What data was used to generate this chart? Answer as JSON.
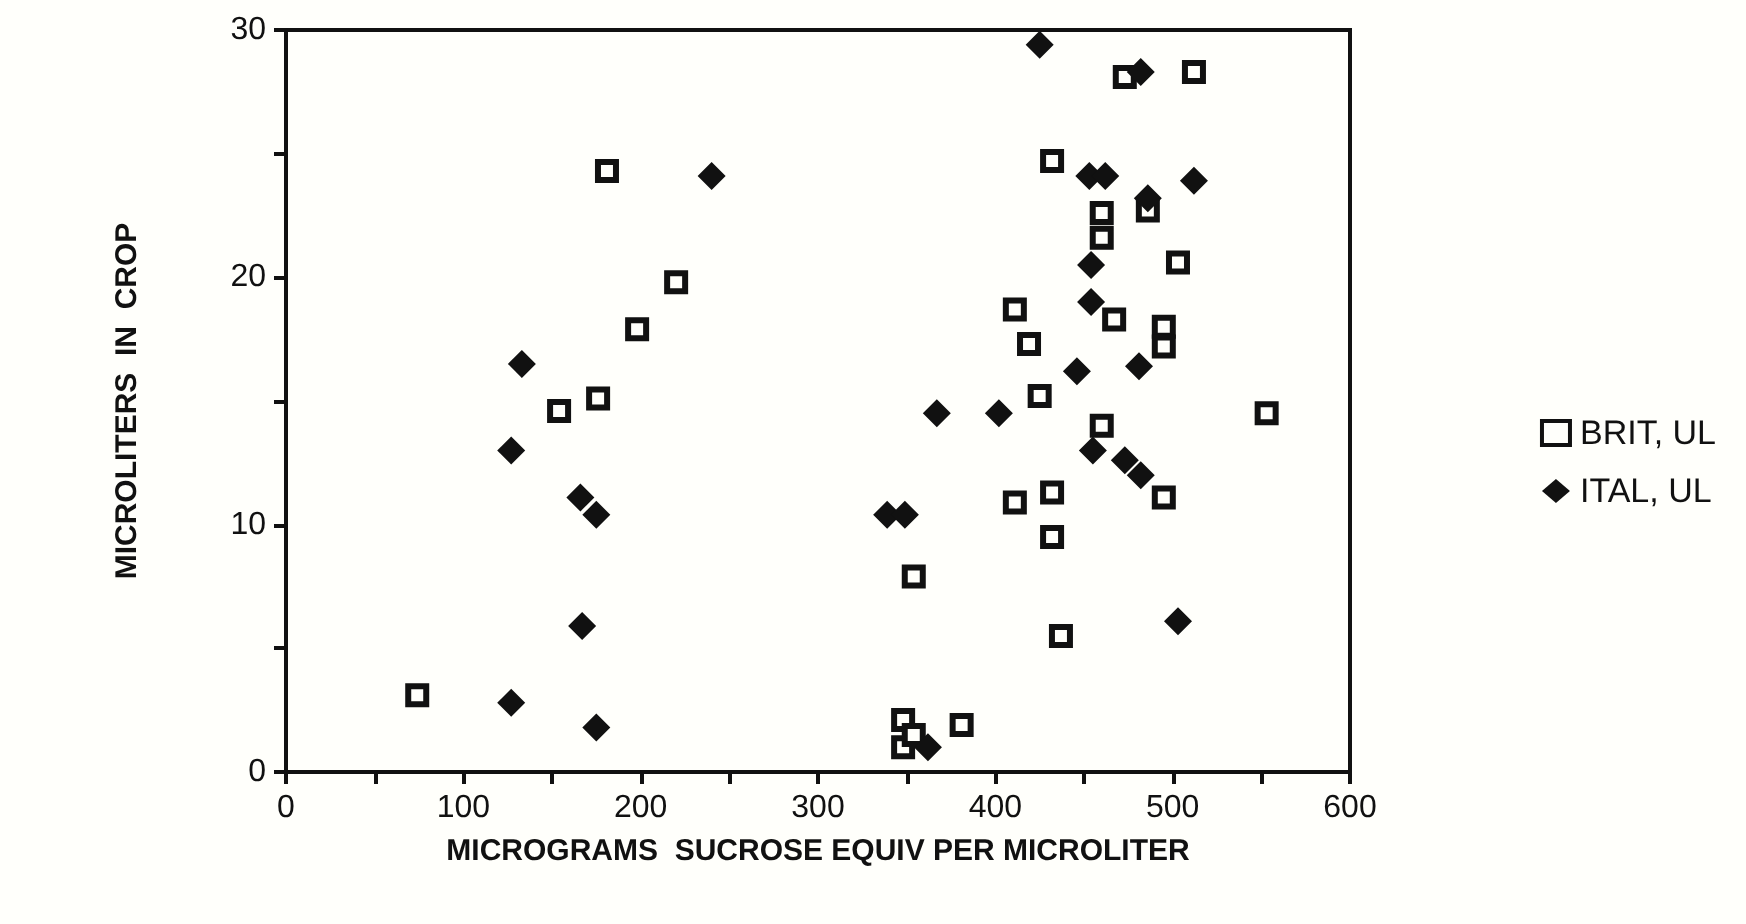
{
  "chart_data": {
    "type": "scatter",
    "xlabel": "MICROGRAMS  SUCROSE EQUIV PER MICROLITER",
    "ylabel": "MICROLITERS  IN  CROP",
    "xlim": [
      0,
      600
    ],
    "xticks": [
      0,
      {
        "value": 50,
        "label": null
      },
      100,
      {
        "value": 150,
        "label": null
      },
      200,
      {
        "value": 250,
        "label": null
      },
      300,
      {
        "value": 350,
        "label": null
      },
      400,
      {
        "value": 450,
        "label": null
      },
      500,
      {
        "value": 550,
        "label": null
      },
      600
    ],
    "ylim": [
      0,
      30
    ],
    "yticks": [
      0,
      {
        "value": 5,
        "label": null
      },
      10,
      {
        "value": 15,
        "label": null
      },
      20,
      {
        "value": 25,
        "label": null
      },
      30
    ],
    "grid": false,
    "legend": "right",
    "series": [
      {
        "name": "BRIT, UL",
        "color": "#111111",
        "marker": "square",
        "x": [
          74,
          154,
          176,
          181,
          198,
          220,
          473,
          512,
          432,
          460,
          460,
          486,
          503,
          411,
          467,
          495,
          495,
          419,
          425,
          553,
          460,
          495,
          411,
          432,
          432,
          354,
          437,
          348,
          348,
          354,
          381
        ],
        "values": [
          3.1,
          14.6,
          15.1,
          24.3,
          17.9,
          19.8,
          28.1,
          28.3,
          24.7,
          22.6,
          21.6,
          22.7,
          20.6,
          18.7,
          18.3,
          18.0,
          17.2,
          17.3,
          15.2,
          14.5,
          14.0,
          11.1,
          10.9,
          11.3,
          9.5,
          7.9,
          5.5,
          2.1,
          1.0,
          1.5,
          1.9
        ]
      },
      {
        "name": "ITAL, UL",
        "color": "#111111",
        "marker": "diamond",
        "x": [
          127,
          127,
          133,
          166,
          167,
          175,
          175,
          240,
          425,
          482,
          453,
          462,
          512,
          486,
          454,
          454,
          481,
          446,
          367,
          402,
          455,
          473,
          482,
          503,
          339,
          349,
          362
        ],
        "values": [
          2.8,
          13.0,
          16.5,
          11.1,
          5.9,
          10.4,
          1.8,
          24.1,
          29.4,
          28.3,
          24.1,
          24.1,
          23.9,
          23.2,
          20.5,
          19.0,
          16.4,
          16.2,
          14.5,
          14.5,
          13.0,
          12.6,
          12.0,
          6.1,
          10.4,
          10.4,
          1.0
        ]
      }
    ]
  }
}
